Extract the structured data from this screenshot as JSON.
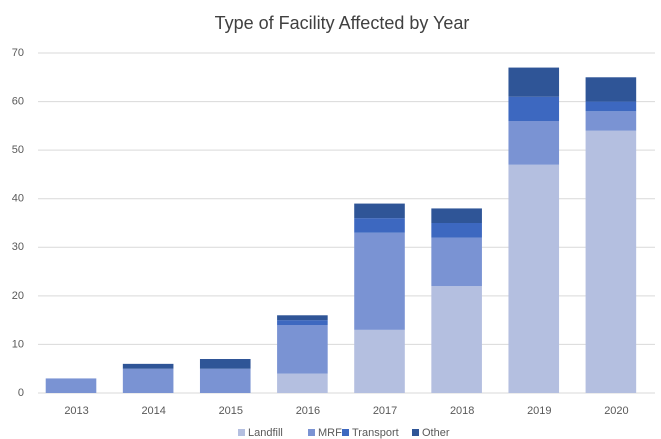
{
  "chart_data": {
    "type": "stacked_bar",
    "title": "Type of Facility Affected by Year",
    "categories": [
      "2013",
      "2014",
      "2015",
      "2016",
      "2017",
      "2018",
      "2019",
      "2020"
    ],
    "series": [
      {
        "name": "Landfill",
        "color": "#b4bfe0",
        "values": [
          0,
          0,
          0,
          4,
          13,
          22,
          47,
          54
        ]
      },
      {
        "name": "MRF",
        "color": "#7a93d3",
        "values": [
          3,
          5,
          5,
          10,
          20,
          10,
          9,
          4
        ]
      },
      {
        "name": "Transport",
        "color": "#3d68c0",
        "values": [
          0,
          0,
          0,
          1,
          3,
          3,
          5,
          2
        ]
      },
      {
        "name": "Other",
        "color": "#2f5597",
        "values": [
          0,
          1,
          2,
          1,
          3,
          3,
          6,
          5
        ]
      }
    ],
    "ylim": [
      0,
      70
    ],
    "yticks": [
      0,
      10,
      20,
      30,
      40,
      50,
      60,
      70
    ],
    "grid": true,
    "legend": "bottom"
  }
}
